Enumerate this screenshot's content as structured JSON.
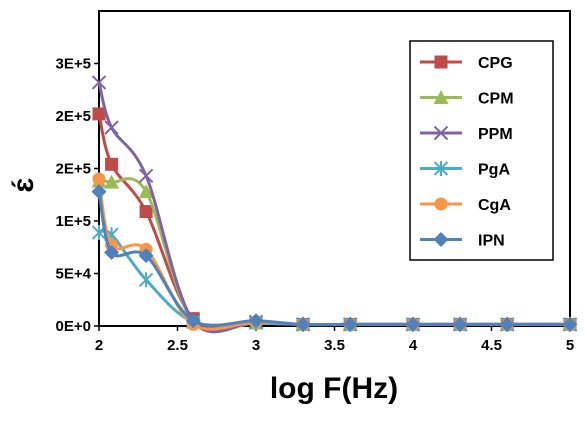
{
  "chart_data": {
    "type": "line",
    "xlabel": "log F(Hz)",
    "ylabel": "ɛ́",
    "xlim": [
      2,
      5
    ],
    "ylim": [
      0,
      300000
    ],
    "x_ticks": [
      "2",
      "2.5",
      "3",
      "3.5",
      "4",
      "4.5",
      "5"
    ],
    "x_tick_values": [
      2,
      2.5,
      3,
      3.5,
      4,
      4.5,
      5
    ],
    "y_ticks": [
      "0E+0",
      "5E+4",
      "1E+5",
      "2E+5",
      "2E+5",
      "3E+5"
    ],
    "y_tick_values": [
      0,
      50000,
      100000,
      150000,
      200000,
      250000
    ],
    "grid": false,
    "legend_position": "top-right",
    "series": [
      {
        "name": "CPG",
        "color": "#be4b48",
        "marker": "square",
        "x": [
          2,
          2.08,
          2.3,
          2.6,
          3,
          3.3,
          3.6,
          4,
          4.3,
          4.6,
          5
        ],
        "y": [
          202000,
          154000,
          109000,
          7000,
          3000,
          1500,
          1500,
          1500,
          1500,
          1500,
          1500
        ]
      },
      {
        "name": "CPM",
        "color": "#9bbb59",
        "marker": "triangle",
        "x": [
          2,
          2.08,
          2.3,
          2.6,
          3,
          3.3,
          3.6,
          4,
          4.3,
          4.6,
          5
        ],
        "y": [
          138000,
          137000,
          128000,
          4000,
          3000,
          1500,
          1500,
          1500,
          1500,
          1500,
          1500
        ]
      },
      {
        "name": "PPM",
        "color": "#8064a2",
        "marker": "x",
        "x": [
          2,
          2.08,
          2.3,
          2.6,
          3,
          3.3,
          3.6,
          4,
          4.3,
          4.6,
          5
        ],
        "y": [
          232000,
          189000,
          143000,
          5000,
          4000,
          1500,
          1500,
          1500,
          1500,
          1500,
          1500
        ]
      },
      {
        "name": "PgA",
        "color": "#4bacc6",
        "marker": "star",
        "x": [
          2,
          2.08,
          2.3,
          2.6,
          3,
          3.3,
          3.6,
          4,
          4.3,
          4.6,
          5
        ],
        "y": [
          89000,
          87000,
          44000,
          4000,
          3000,
          1500,
          1500,
          1500,
          1500,
          1500,
          1500
        ]
      },
      {
        "name": "CgA",
        "color": "#f79646",
        "marker": "circle",
        "x": [
          2,
          2.08,
          2.3,
          2.6,
          3,
          3.3,
          3.6,
          4,
          4.3,
          4.6,
          5
        ],
        "y": [
          140000,
          77000,
          73000,
          1500,
          4000,
          1500,
          1500,
          1500,
          1500,
          1500,
          1500
        ]
      },
      {
        "name": "IPN",
        "color": "#4f81bd",
        "marker": "diamond",
        "x": [
          2,
          2.08,
          2.3,
          2.6,
          3,
          3.3,
          3.6,
          4,
          4.3,
          4.6,
          5
        ],
        "y": [
          128000,
          70000,
          67000,
          5000,
          5000,
          1500,
          1500,
          1500,
          1500,
          1500,
          1500
        ]
      }
    ]
  }
}
